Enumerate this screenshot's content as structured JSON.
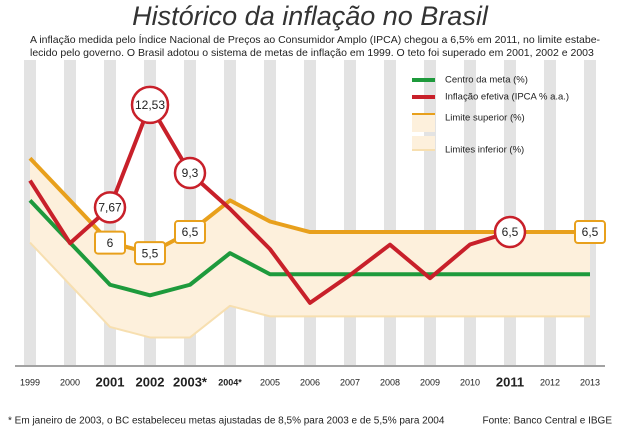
{
  "chart_data": {
    "type": "line",
    "title": "Histórico da inflação no Brasil",
    "subtitle": [
      "A inflação medida pelo Índice Nacional de Preços ao Consumidor Amplo (IPCA) chegou a 6,5% em 2011, no limite estabe-",
      "lecido pelo governo. O Brasil adotou o sistema de metas de inflação em 1999. O teto foi superado em 2001, 2002 e 2003"
    ],
    "categories": [
      "1999",
      "2000",
      "2001",
      "2002",
      "2003*",
      "2004*",
      "2005",
      "2006",
      "2007",
      "2008",
      "2009",
      "2010",
      "2011",
      "2012",
      "2013"
    ],
    "ylim": [
      1,
      13
    ],
    "series": [
      {
        "name": "Centro da meta (%)",
        "color": "#1e9a3c",
        "values": [
          8,
          6,
          4,
          3.5,
          4,
          5.5,
          4.5,
          4.5,
          4.5,
          4.5,
          4.5,
          4.5,
          4.5,
          4.5,
          4.5
        ]
      },
      {
        "name": "Inflação efetiva (IPCA % a.a.)",
        "color": "#c8202a",
        "values": [
          8.94,
          5.97,
          7.67,
          12.53,
          9.3,
          7.6,
          5.69,
          3.14,
          4.46,
          5.9,
          4.31,
          5.91,
          6.5,
          null,
          null
        ],
        "value_labels": [
          null,
          null,
          "7,67",
          "12,53",
          "9,3",
          null,
          null,
          null,
          null,
          null,
          null,
          null,
          "6,5",
          null,
          null
        ]
      },
      {
        "name": "Limite superior (%)",
        "color": "#e8a01c",
        "values": [
          10,
          8,
          6,
          5.5,
          6.5,
          8,
          7,
          6.5,
          6.5,
          6.5,
          6.5,
          6.5,
          6.5,
          6.5,
          6.5
        ],
        "value_labels": [
          null,
          null,
          "6",
          "5,5",
          "6,5",
          null,
          null,
          null,
          null,
          null,
          null,
          null,
          null,
          null,
          "6,5"
        ]
      },
      {
        "name": "Limites inferior (%)",
        "color": "#f7dfb0",
        "values": [
          6,
          4,
          2,
          1.5,
          1.5,
          3,
          2.5,
          2.5,
          2.5,
          2.5,
          2.5,
          2.5,
          2.5,
          2.5,
          2.5
        ]
      }
    ],
    "footnote": "* Em janeiro de 2003, o BC estabeleceu metas ajustadas de 8,5% para 2003 e de 5,5% para 2004",
    "source": "Fonte: Banco Central e IBGE"
  }
}
